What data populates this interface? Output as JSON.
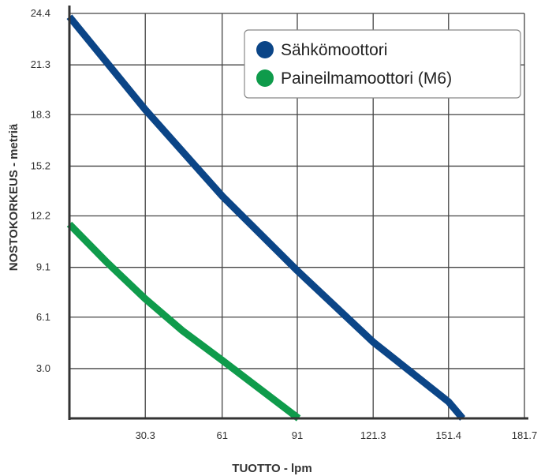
{
  "chart_data": {
    "type": "line",
    "xlabel": "TUOTTO - lpm",
    "ylabel": "NOSTOKORKEUS - metriä",
    "xlim": [
      0,
      181.7
    ],
    "ylim": [
      0,
      24.4
    ],
    "x_ticks": [
      "30.3",
      "61",
      "91",
      "121.3",
      "151.4",
      "181.7"
    ],
    "y_ticks": [
      "3.0",
      "6.1",
      "9.1",
      "12.2",
      "15.2",
      "18.3",
      "21.3",
      "24.4"
    ],
    "grid": true,
    "legend_position": "top-right",
    "series": [
      {
        "name": "Sähkömoottori",
        "color": "#0b4587",
        "x": [
          0,
          30.3,
          61,
          91,
          121.3,
          151.4,
          157
        ],
        "y": [
          24.2,
          18.6,
          13.4,
          8.9,
          4.6,
          1.0,
          0
        ]
      },
      {
        "name": "Paineilmamoottori (M6)",
        "color": "#0f9b4b",
        "x": [
          0,
          15,
          30.3,
          45,
          61,
          91.5
        ],
        "y": [
          11.7,
          9.4,
          7.2,
          5.3,
          3.5,
          0
        ]
      }
    ]
  }
}
